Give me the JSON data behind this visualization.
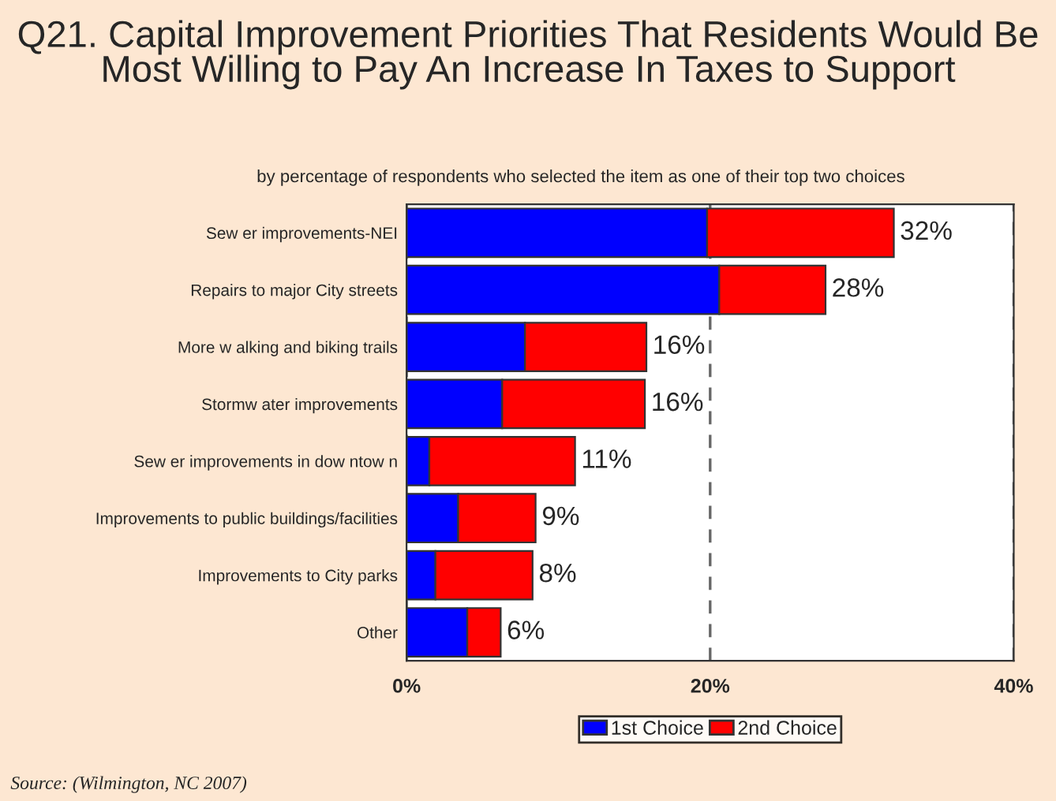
{
  "chart_data": {
    "type": "bar",
    "orientation": "horizontal",
    "stacked": true,
    "title": "Q21. Capital Improvement Priorities That Residents Would Be Most Willing to Pay An Increase In Taxes to Support",
    "subtitle": "by percentage of respondents who selected the item as one of their top two choices",
    "categories": [
      "Sew er improvements-NEI",
      "Repairs to major City streets",
      "More w alking and biking trails",
      "Stormw ater improvements",
      "Sew er improvements in dow ntow n",
      "Improvements to public buildings/facilities",
      "Improvements to City parks",
      "Other"
    ],
    "series": [
      {
        "name": "1st Choice",
        "color": "#0000ff",
        "values": [
          19.8,
          20.6,
          7.8,
          6.3,
          1.5,
          3.4,
          1.9,
          4.0
        ]
      },
      {
        "name": "2nd Choice",
        "color": "#ff0000",
        "values": [
          12.3,
          7.0,
          8.0,
          9.4,
          9.6,
          5.1,
          6.4,
          2.2
        ]
      }
    ],
    "totals": [
      "32%",
      "28%",
      "16%",
      "16%",
      "11%",
      "9%",
      "8%",
      "6%"
    ],
    "xlim": [
      0,
      40
    ],
    "xticks": [
      {
        "value": 0,
        "label": "0%"
      },
      {
        "value": 20,
        "label": "20%"
      },
      {
        "value": 40,
        "label": "40%"
      }
    ],
    "grid": "x",
    "line_style": "dashed",
    "legend": "bottom",
    "annotations": [
      "Source: (Wilmington, NC 2007)"
    ]
  }
}
